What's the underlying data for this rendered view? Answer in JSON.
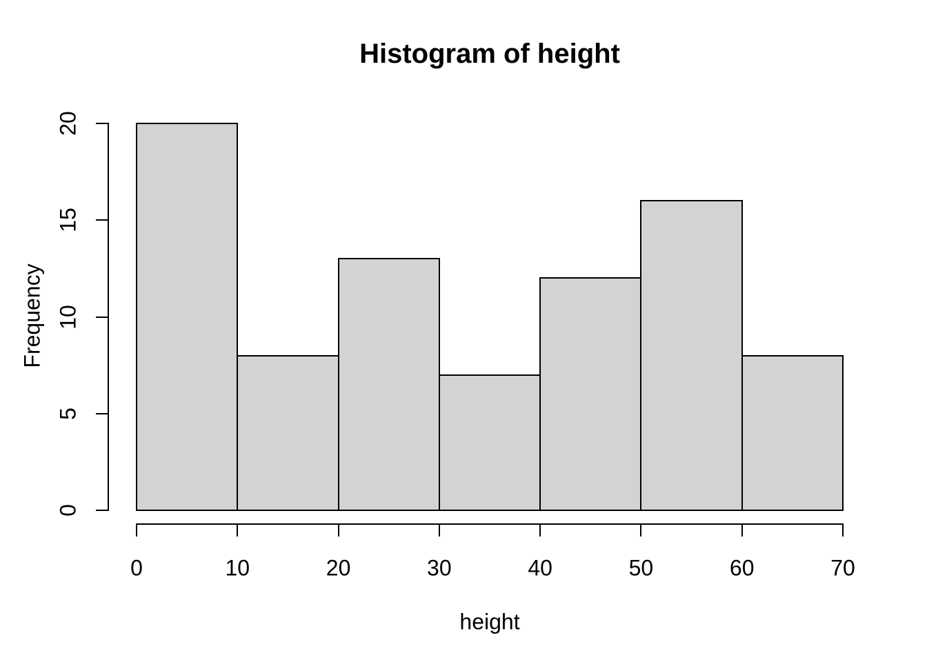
{
  "chart_data": {
    "type": "bar",
    "subtype": "histogram",
    "title": "Histogram of height",
    "xlabel": "height",
    "ylabel": "Frequency",
    "bin_edges": [
      0,
      10,
      20,
      30,
      40,
      50,
      60,
      70
    ],
    "values": [
      20,
      8,
      13,
      7,
      12,
      16,
      8
    ],
    "x_ticks": [
      0,
      10,
      20,
      30,
      40,
      50,
      60,
      70
    ],
    "y_ticks": [
      0,
      5,
      10,
      15,
      20
    ],
    "xlim": [
      0,
      70
    ],
    "ylim": [
      0,
      20
    ],
    "grid": false,
    "legend": "none",
    "colors": {
      "bar_fill": "#d3d3d3",
      "bar_border": "#000000",
      "axis": "#000000",
      "text": "#000000",
      "background": "#ffffff"
    }
  }
}
